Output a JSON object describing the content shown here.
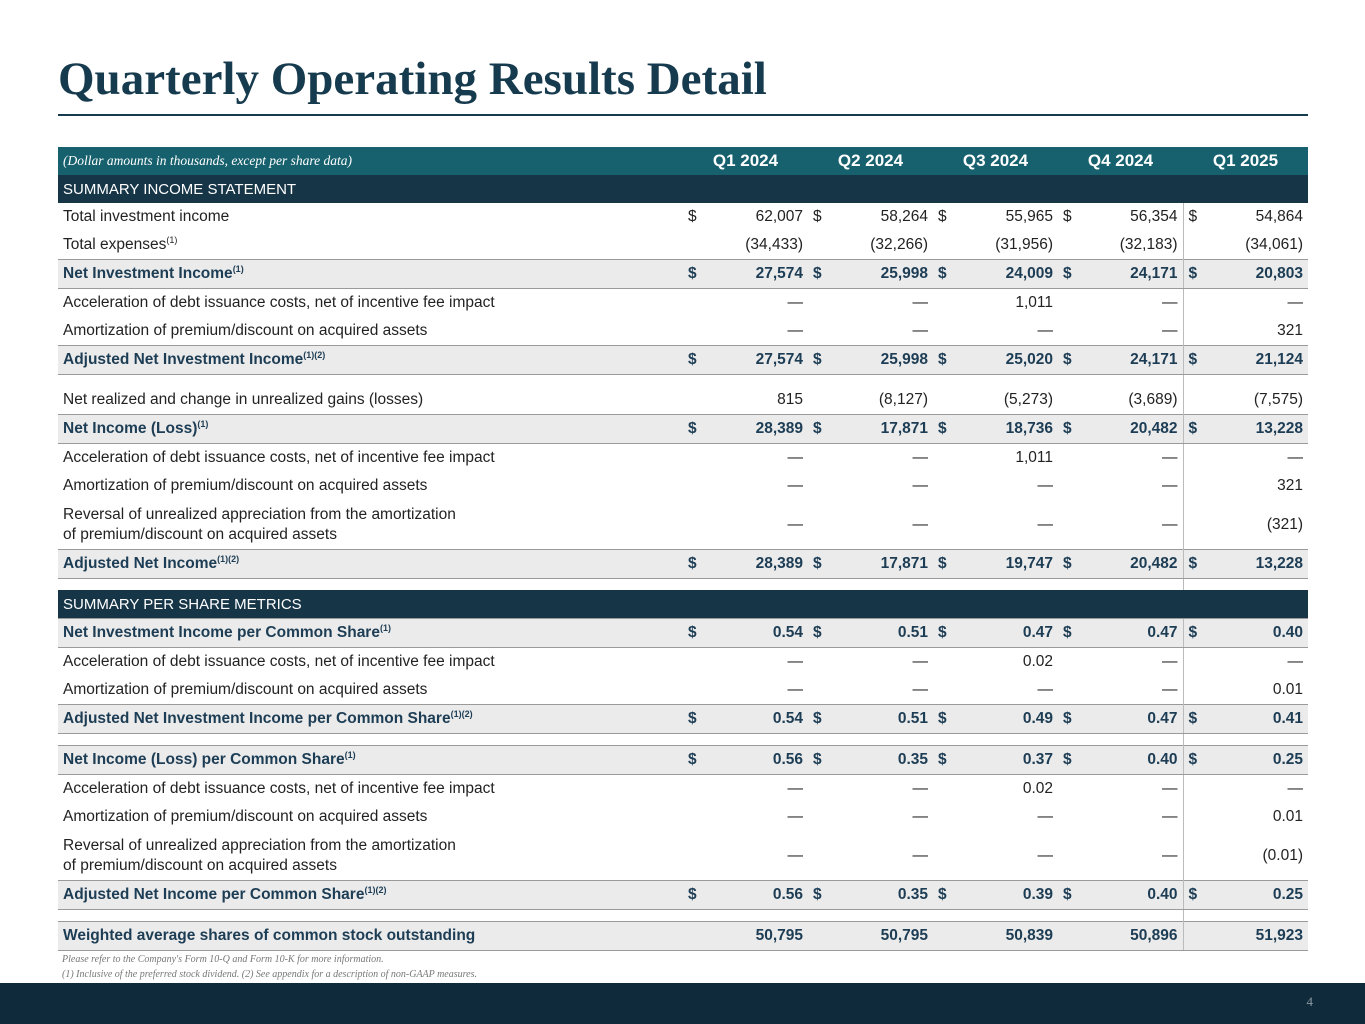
{
  "title": "Quarterly Operating Results Detail",
  "table": {
    "note": "(Dollar amounts in thousands, except per share data)",
    "columns": [
      "Q1 2024",
      "Q2 2024",
      "Q3 2024",
      "Q4 2024",
      "Q1 2025"
    ],
    "sections": [
      {
        "title": "SUMMARY INCOME STATEMENT",
        "blocks": [
          [
            {
              "label": [
                "Total investment income"
              ],
              "dollar": "$",
              "values": [
                "62,007",
                "58,264",
                "55,965",
                "56,354",
                "54,864"
              ]
            },
            {
              "label": [
                "Total expenses"
              ],
              "sup": "(1)",
              "values": [
                "(34,433)",
                "(32,266)",
                "(31,956)",
                "(32,183)",
                "(34,061)"
              ]
            },
            {
              "label": [
                "Net Investment Income"
              ],
              "sup": "(1)",
              "bold": true,
              "dollar": "$",
              "values": [
                "27,574",
                "25,998",
                "24,009",
                "24,171",
                "20,803"
              ]
            },
            {
              "label": [
                "Acceleration of debt issuance costs, net of incentive fee impact"
              ],
              "values": [
                "—",
                "—",
                "1,011",
                "—",
                "—"
              ]
            },
            {
              "label": [
                "Amortization of premium/discount on acquired assets"
              ],
              "values": [
                "—",
                "—",
                "—",
                "—",
                "321"
              ]
            },
            {
              "label": [
                "Adjusted Net Investment Income"
              ],
              "sup": "(1)(2)",
              "bold": true,
              "dollar": "$",
              "values": [
                "27,574",
                "25,998",
                "25,020",
                "24,171",
                "21,124"
              ]
            }
          ],
          [
            {
              "label": [
                "Net realized and change in unrealized gains (losses)"
              ],
              "values": [
                "815",
                "(8,127)",
                "(5,273)",
                "(3,689)",
                "(7,575)"
              ]
            },
            {
              "label": [
                "Net Income (Loss)"
              ],
              "sup": "(1)",
              "bold": true,
              "dollar": "$",
              "values": [
                "28,389",
                "17,871",
                "18,736",
                "20,482",
                "13,228"
              ]
            },
            {
              "label": [
                "Acceleration of debt issuance costs, net of incentive fee impact"
              ],
              "values": [
                "—",
                "—",
                "1,011",
                "—",
                "—"
              ]
            },
            {
              "label": [
                "Amortization of premium/discount on acquired assets"
              ],
              "values": [
                "—",
                "—",
                "—",
                "—",
                "321"
              ]
            },
            {
              "label": [
                "Reversal of unrealized appreciation from the amortization",
                "of premium/discount on acquired assets"
              ],
              "values": [
                "—",
                "—",
                "—",
                "—",
                "(321)"
              ]
            },
            {
              "label": [
                "Adjusted Net Income"
              ],
              "sup": "(1)(2)",
              "bold": true,
              "dollar": "$",
              "values": [
                "28,389",
                "17,871",
                "19,747",
                "20,482",
                "13,228"
              ]
            }
          ]
        ]
      },
      {
        "title": "SUMMARY PER SHARE METRICS",
        "blocks": [
          [
            {
              "label": [
                "Net Investment Income per Common Share"
              ],
              "sup": "(1)",
              "bold": true,
              "dollar": "$",
              "values": [
                "0.54",
                "0.51",
                "0.47",
                "0.47",
                "0.40"
              ]
            },
            {
              "label": [
                "Acceleration of debt issuance costs, net of incentive fee impact"
              ],
              "values": [
                "—",
                "—",
                "0.02",
                "—",
                "—"
              ]
            },
            {
              "label": [
                "Amortization of premium/discount on acquired assets"
              ],
              "values": [
                "—",
                "—",
                "—",
                "—",
                "0.01"
              ]
            },
            {
              "label": [
                "Adjusted Net Investment Income per Common Share"
              ],
              "sup": "(1)(2)",
              "bold": true,
              "dollar": "$",
              "values": [
                "0.54",
                "0.51",
                "0.49",
                "0.47",
                "0.41"
              ]
            }
          ],
          [
            {
              "label": [
                "Net Income (Loss) per Common Share"
              ],
              "sup": "(1)",
              "bold": true,
              "dollar": "$",
              "values": [
                "0.56",
                "0.35",
                "0.37",
                "0.40",
                "0.25"
              ]
            },
            {
              "label": [
                "Acceleration of debt issuance costs, net of incentive fee impact"
              ],
              "values": [
                "—",
                "—",
                "0.02",
                "—",
                "—"
              ]
            },
            {
              "label": [
                "Amortization of premium/discount on acquired assets"
              ],
              "values": [
                "—",
                "—",
                "—",
                "—",
                "0.01"
              ]
            },
            {
              "label": [
                "Reversal of unrealized appreciation from the amortization",
                "of premium/discount on acquired assets"
              ],
              "values": [
                "—",
                "—",
                "—",
                "—",
                "(0.01)"
              ]
            },
            {
              "label": [
                "Adjusted Net Income per Common Share"
              ],
              "sup": "(1)(2)",
              "bold": true,
              "dollar": "$",
              "values": [
                "0.56",
                "0.35",
                "0.39",
                "0.40",
                "0.25"
              ]
            }
          ],
          [
            {
              "label": [
                "Weighted average shares of common stock outstanding"
              ],
              "bold": true,
              "values": [
                "50,795",
                "50,795",
                "50,839",
                "50,896",
                "51,923"
              ]
            }
          ]
        ]
      }
    ]
  },
  "footnotes": [
    "Please refer to the Company's Form 10-Q and Form 10-K for more information.",
    "(1) Inclusive of the preferred stock dividend. (2) See appendix for a description of non-GAAP measures."
  ],
  "page_number": "4"
}
